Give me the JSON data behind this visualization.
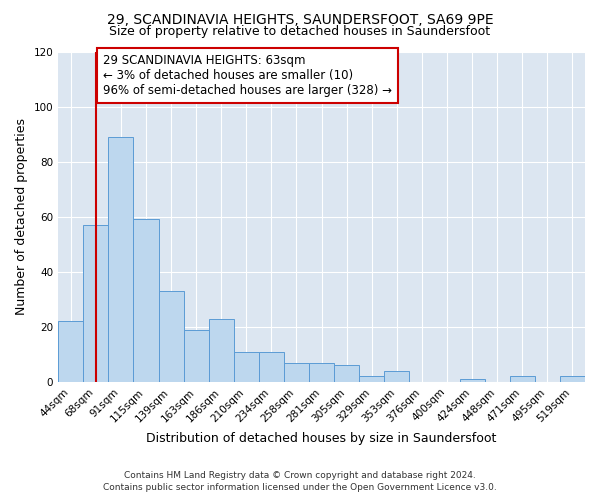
{
  "title": "29, SCANDINAVIA HEIGHTS, SAUNDERSFOOT, SA69 9PE",
  "subtitle": "Size of property relative to detached houses in Saundersfoot",
  "xlabel": "Distribution of detached houses by size in Saundersfoot",
  "ylabel": "Number of detached properties",
  "bin_labels": [
    "44sqm",
    "68sqm",
    "91sqm",
    "115sqm",
    "139sqm",
    "163sqm",
    "186sqm",
    "210sqm",
    "234sqm",
    "258sqm",
    "281sqm",
    "305sqm",
    "329sqm",
    "353sqm",
    "376sqm",
    "400sqm",
    "424sqm",
    "448sqm",
    "471sqm",
    "495sqm",
    "519sqm"
  ],
  "bar_values": [
    22,
    57,
    89,
    59,
    33,
    19,
    23,
    11,
    11,
    7,
    7,
    6,
    2,
    4,
    0,
    0,
    1,
    0,
    2,
    0,
    2
  ],
  "bar_color": "#bdd7ee",
  "bar_edgecolor": "#5b9bd5",
  "ylim": [
    0,
    120
  ],
  "yticks": [
    0,
    20,
    40,
    60,
    80,
    100,
    120
  ],
  "marker_x_label": "68sqm",
  "marker_label_line1": "29 SCANDINAVIA HEIGHTS: 63sqm",
  "marker_label_line2": "← 3% of detached houses are smaller (10)",
  "marker_label_line3": "96% of semi-detached houses are larger (328) →",
  "marker_color": "#cc0000",
  "box_edgecolor": "#cc0000",
  "footer_line1": "Contains HM Land Registry data © Crown copyright and database right 2024.",
  "footer_line2": "Contains public sector information licensed under the Open Government Licence v3.0.",
  "fig_bg_color": "#ffffff",
  "plot_bg_color": "#dce6f1",
  "grid_color": "#ffffff",
  "title_fontsize": 10,
  "subtitle_fontsize": 9,
  "axis_label_fontsize": 9,
  "tick_fontsize": 7.5,
  "annotation_fontsize": 8.5,
  "footer_fontsize": 6.5
}
